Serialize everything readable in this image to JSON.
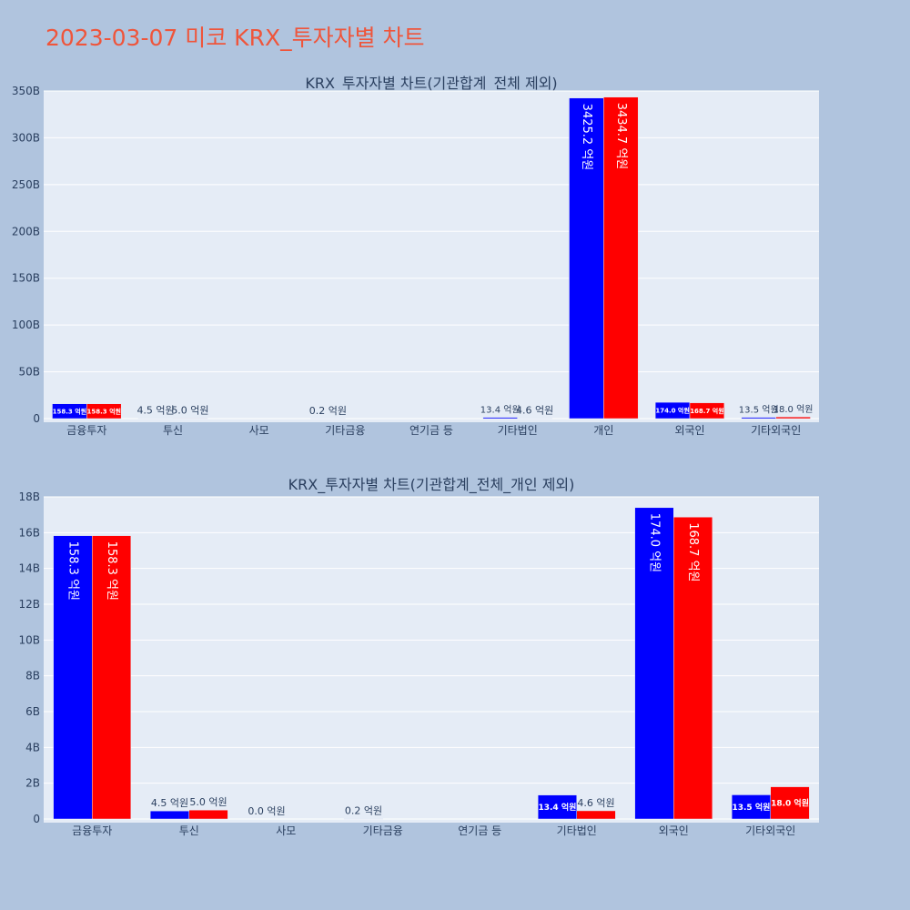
{
  "page": {
    "title": "2023-03-07 미코 KRX_투자자별 차트"
  },
  "colors": {
    "sell": "#0000ff",
    "buy": "#ff0000",
    "plot_bg": "#e5ecf6",
    "page_bg": "#b0c4de",
    "text": "#2a3f5f"
  },
  "chart_data": [
    {
      "type": "bar",
      "title": "KRX_투자자별 차트(기관합계_전체 제외)",
      "categories": [
        "금융투자",
        "투신",
        "사모",
        "기타금융",
        "연기금 등",
        "기타법인",
        "개인",
        "외국인",
        "기타외국인"
      ],
      "ylim": [
        0,
        350
      ],
      "yticks": [
        0,
        50,
        100,
        150,
        200,
        250,
        300,
        350
      ],
      "ytick_labels": [
        "0",
        "50B",
        "100B",
        "150B",
        "200B",
        "250B",
        "300B",
        "350B"
      ],
      "grid": true,
      "series": [
        {
          "values": [
            15.83,
            0.45,
            null,
            0.02,
            null,
            1.34,
            342.52,
            17.4,
            1.35
          ],
          "labels": [
            "158.3 억원",
            "4.5 억원",
            "",
            "0.2 억원",
            "",
            "13.4 억원",
            "3425.2 억원",
            "174.0 억원",
            "13.5 억원"
          ]
        },
        {
          "values": [
            15.83,
            0.5,
            null,
            null,
            null,
            0.46,
            343.47,
            16.87,
            1.8
          ],
          "labels": [
            "158.3 억원",
            "5.0 억원",
            "",
            "",
            "",
            "4.6 억원",
            "3434.7 억원",
            "168.7 억원",
            "18.0 억원"
          ]
        }
      ]
    },
    {
      "type": "bar",
      "title": "KRX_투자자별 차트(기관합계_전체_개인 제외)",
      "categories": [
        "금융투자",
        "투신",
        "사모",
        "기타금융",
        "연기금 등",
        "기타법인",
        "외국인",
        "기타외국인"
      ],
      "ylim": [
        0,
        18
      ],
      "yticks": [
        0,
        2,
        4,
        6,
        8,
        10,
        12,
        14,
        16,
        18
      ],
      "ytick_labels": [
        "0",
        "2B",
        "4B",
        "6B",
        "8B",
        "10B",
        "12B",
        "14B",
        "16B",
        "18B"
      ],
      "grid": true,
      "series": [
        {
          "values": [
            15.83,
            0.45,
            0.0,
            0.02,
            null,
            1.34,
            17.4,
            1.35
          ],
          "labels": [
            "158.3 억원",
            "4.5 억원",
            "0.0 억원",
            "0.2 억원",
            "",
            "13.4 억원",
            "174.0 억원",
            "13.5 억원"
          ]
        },
        {
          "values": [
            15.83,
            0.5,
            null,
            null,
            null,
            0.46,
            16.87,
            1.8
          ],
          "labels": [
            "158.3 억원",
            "5.0 억원",
            "",
            "",
            "",
            "4.6 억원",
            "168.7 억원",
            "18.0 억원"
          ]
        }
      ]
    }
  ]
}
